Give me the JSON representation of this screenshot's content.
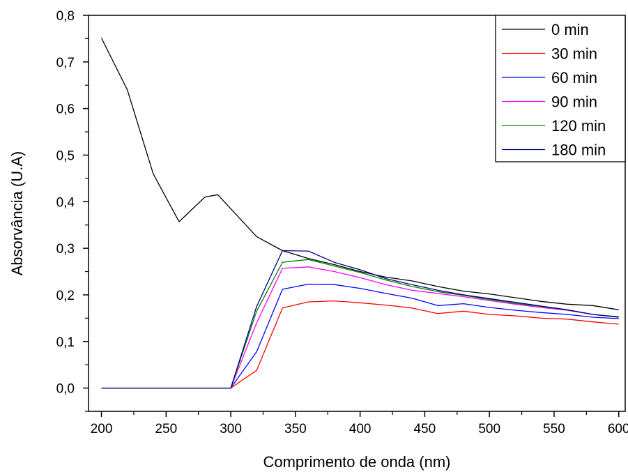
{
  "chart_data": {
    "type": "line",
    "xlabel": "Comprimento de onda (nm)",
    "ylabel": "Absorvância (U.A)",
    "xlim": [
      190,
      605
    ],
    "ylim": [
      -0.05,
      0.8
    ],
    "x_ticks": [
      200,
      250,
      300,
      350,
      400,
      450,
      500,
      550,
      600
    ],
    "y_ticks": [
      0.0,
      0.1,
      0.2,
      0.3,
      0.4,
      0.5,
      0.6,
      0.7,
      0.8
    ],
    "x_tick_labels": [
      "200",
      "250",
      "300",
      "350",
      "400",
      "450",
      "500",
      "550",
      "600"
    ],
    "y_tick_labels": [
      "0,0",
      "0,1",
      "0,2",
      "0,3",
      "0,4",
      "0,5",
      "0,6",
      "0,7",
      "0,8"
    ],
    "legend_position": "top-right",
    "grid": false,
    "series": [
      {
        "name": "0 min",
        "color": "#000000",
        "x": [
          200,
          220,
          240,
          260,
          280,
          290,
          320,
          340,
          360,
          380,
          400,
          420,
          440,
          460,
          480,
          500,
          520,
          540,
          560,
          580,
          600
        ],
        "y": [
          0.751,
          0.64,
          0.46,
          0.357,
          0.41,
          0.415,
          0.325,
          0.295,
          0.278,
          0.265,
          0.25,
          0.238,
          0.23,
          0.218,
          0.208,
          0.202,
          0.194,
          0.186,
          0.18,
          0.177,
          0.168
        ]
      },
      {
        "name": "30 min",
        "color": "#ff0000",
        "x": [
          200,
          300,
          320,
          340,
          360,
          380,
          400,
          420,
          440,
          460,
          480,
          500,
          520,
          540,
          560,
          580,
          600
        ],
        "y": [
          0.0,
          0.0,
          0.038,
          0.172,
          0.185,
          0.187,
          0.183,
          0.178,
          0.172,
          0.16,
          0.165,
          0.158,
          0.155,
          0.15,
          0.148,
          0.142,
          0.137
        ]
      },
      {
        "name": "60 min",
        "color": "#0000ff",
        "x": [
          200,
          300,
          320,
          340,
          360,
          380,
          400,
          420,
          440,
          460,
          480,
          500,
          520,
          540,
          560,
          580,
          600
        ],
        "y": [
          0.0,
          0.0,
          0.078,
          0.212,
          0.223,
          0.222,
          0.214,
          0.203,
          0.193,
          0.177,
          0.181,
          0.173,
          0.167,
          0.162,
          0.158,
          0.152,
          0.149
        ]
      },
      {
        "name": "90 min",
        "color": "#ff00ff",
        "x": [
          200,
          300,
          320,
          340,
          360,
          380,
          400,
          420,
          440,
          460,
          480,
          500,
          520,
          540,
          560,
          580,
          600
        ],
        "y": [
          0.0,
          0.0,
          0.14,
          0.257,
          0.26,
          0.25,
          0.237,
          0.222,
          0.21,
          0.203,
          0.196,
          0.188,
          0.18,
          0.173,
          0.167,
          0.158,
          0.152
        ]
      },
      {
        "name": "120 min",
        "color": "#008000",
        "x": [
          200,
          300,
          320,
          340,
          360,
          380,
          400,
          420,
          440,
          460,
          480,
          500,
          520,
          540,
          560,
          580,
          600
        ],
        "y": [
          0.0,
          0.0,
          0.165,
          0.27,
          0.276,
          0.262,
          0.248,
          0.232,
          0.218,
          0.207,
          0.199,
          0.19,
          0.182,
          0.175,
          0.168,
          0.158,
          0.153
        ]
      },
      {
        "name": "180 min",
        "color": "#000080",
        "x": [
          200,
          300,
          320,
          340,
          360,
          380,
          400,
          420,
          440,
          460,
          480,
          500,
          520,
          540,
          560,
          580,
          600
        ],
        "y": [
          0.0,
          0.0,
          0.175,
          0.295,
          0.294,
          0.27,
          0.254,
          0.235,
          0.222,
          0.21,
          0.2,
          0.192,
          0.184,
          0.176,
          0.168,
          0.158,
          0.152
        ]
      }
    ]
  }
}
